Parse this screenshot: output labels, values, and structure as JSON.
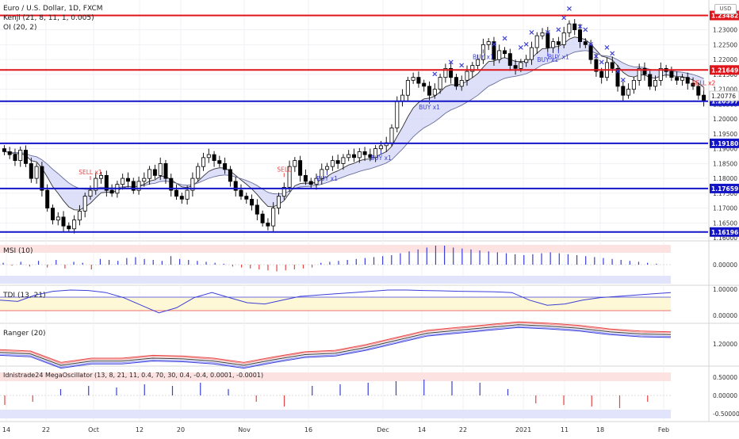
{
  "header": {
    "title": "Euro / U.S. Dollar, 1D, FXCM",
    "indicators": [
      "Kenji (21, 8, 11, 1, 0.005)",
      "OI (20, 2)"
    ],
    "currency_badge": "USD"
  },
  "colors": {
    "up_candle": "#ffffff",
    "down_candle": "#000000",
    "buy_marker": "#3b3fd8",
    "sell_marker": "#e64545",
    "resistance_line": "#e0151b",
    "support_line": "#1515c8",
    "cloud_fill": "#cfd3f5"
  },
  "chart_data": [
    {
      "type": "candlestick",
      "title": "Euro / U.S. Dollar, 1D, FXCM",
      "ylim": [
        1.1595,
        1.2395
      ],
      "price_axis": [
        "1.23000",
        "1.22500",
        "1.22000",
        "1.21500",
        "1.21000",
        "1.20500",
        "1.20000",
        "1.19500",
        "1.19000",
        "1.18500",
        "1.18000",
        "1.17500",
        "1.17000",
        "1.16500",
        "1.16000"
      ],
      "x_tick_labels": [
        "14",
        "22",
        "Oct",
        "12",
        "20",
        "Nov",
        "16",
        "Dec",
        "14",
        "22",
        "2021",
        "11",
        "18",
        "Feb"
      ],
      "horizontal_levels": [
        {
          "label": "1.23482",
          "value": 1.23482,
          "kind": "resistance"
        },
        {
          "label": "1.21649",
          "value": 1.21649,
          "kind": "resistance"
        },
        {
          "label": "1.20597",
          "value": 1.20597,
          "kind": "support"
        },
        {
          "label": "1.19180",
          "value": 1.1918,
          "kind": "support"
        },
        {
          "label": "1.17659",
          "value": 1.17659,
          "kind": "support"
        },
        {
          "label": "1.16196",
          "value": 1.16196,
          "kind": "support"
        }
      ],
      "last_price_label": "1.20776",
      "signals": [
        {
          "label": "SELL x1",
          "index": 16,
          "kind": "sell"
        },
        {
          "label": "SELL",
          "index": 52,
          "kind": "sell"
        },
        {
          "label": "BUY x1",
          "index": 60,
          "kind": "buy"
        },
        {
          "label": "BUY x1",
          "index": 70,
          "kind": "buy"
        },
        {
          "label": "BUY x1",
          "index": 79,
          "kind": "buy"
        },
        {
          "label": "BUY x1",
          "index": 89,
          "kind": "buy"
        },
        {
          "label": "BUY x1",
          "index": 101,
          "kind": "buy"
        },
        {
          "label": "BUY x1",
          "index": 103,
          "kind": "buy"
        },
        {
          "label": "SELL x2",
          "index": 131,
          "kind": "sell"
        },
        {
          "label": "SELL x2",
          "index": 136,
          "kind": "sell"
        }
      ],
      "x_marker_indices": [
        80,
        83,
        85,
        91,
        93,
        96,
        97,
        98,
        101,
        103,
        104,
        105,
        107,
        108,
        109,
        110,
        111,
        112,
        113,
        114,
        115
      ],
      "close": [
        1.189,
        1.188,
        1.186,
        1.1895,
        1.185,
        1.18,
        1.184,
        1.176,
        1.17,
        1.166,
        1.167,
        1.164,
        1.163,
        1.166,
        1.169,
        1.174,
        1.176,
        1.18,
        1.181,
        1.176,
        1.175,
        1.178,
        1.18,
        1.179,
        1.176,
        1.179,
        1.18,
        1.183,
        1.181,
        1.185,
        1.18,
        1.176,
        1.174,
        1.173,
        1.176,
        1.18,
        1.184,
        1.187,
        1.188,
        1.186,
        1.185,
        1.183,
        1.179,
        1.176,
        1.174,
        1.173,
        1.171,
        1.168,
        1.165,
        1.164,
        1.17,
        1.174,
        1.177,
        1.184,
        1.186,
        1.181,
        1.179,
        1.178,
        1.18,
        1.183,
        1.184,
        1.186,
        1.185,
        1.187,
        1.188,
        1.187,
        1.189,
        1.188,
        1.187,
        1.19,
        1.191,
        1.192,
        1.197,
        1.206,
        1.208,
        1.213,
        1.214,
        1.212,
        1.211,
        1.208,
        1.21,
        1.214,
        1.217,
        1.214,
        1.211,
        1.213,
        1.216,
        1.218,
        1.22,
        1.225,
        1.226,
        1.22,
        1.223,
        1.222,
        1.218,
        1.217,
        1.219,
        1.22,
        1.224,
        1.228,
        1.229,
        1.224,
        1.226,
        1.225,
        1.229,
        1.232,
        1.23,
        1.226,
        1.225,
        1.22,
        1.216,
        1.214,
        1.219,
        1.217,
        1.211,
        1.208,
        1.21,
        1.213,
        1.217,
        1.215,
        1.211,
        1.213,
        1.217,
        1.216,
        1.214,
        1.213,
        1.214,
        1.212,
        1.211,
        1.208,
        1.206
      ],
      "series": [
        {
          "name": "MSI (10)",
          "values": [
            0.02,
            -0.01,
            0.03,
            -0.02,
            0.04,
            -0.03,
            0.05,
            -0.04,
            0.03,
            0.02,
            -0.05,
            0.06,
            0.05,
            0.04,
            0.07,
            0.08,
            0.06,
            0.05,
            0.04,
            0.09,
            0.06,
            0.05,
            0.04,
            0.03,
            0.02,
            0.01,
            -0.02,
            -0.03,
            -0.04,
            -0.05,
            -0.06,
            -0.07,
            -0.06,
            -0.05,
            -0.04,
            -0.03,
            0.02,
            0.03,
            0.04,
            0.05,
            0.06,
            0.07,
            0.08,
            0.09,
            0.1,
            0.12,
            0.14,
            0.16,
            0.18,
            0.2,
            0.2,
            0.18,
            0.17,
            0.16,
            0.15,
            0.14,
            0.13,
            0.12,
            0.11,
            0.1,
            0.11,
            0.12,
            0.13,
            0.12,
            0.11,
            0.1,
            0.09,
            0.08,
            0.07,
            0.06,
            0.05,
            0.04,
            0.03,
            0.02,
            0.01,
            0.0
          ]
        },
        {
          "name": "TDI (13, 21)",
          "values": [
            0.6,
            0.55,
            0.8,
            0.95,
            1.0,
            0.98,
            0.9,
            0.7,
            0.4,
            0.1,
            0.3,
            0.7,
            0.9,
            0.7,
            0.5,
            0.45,
            0.6,
            0.75,
            0.8,
            0.85,
            0.9,
            0.95,
            1.0,
            1.0,
            0.98,
            0.97,
            0.95,
            0.94,
            0.93,
            0.9,
            0.6,
            0.4,
            0.45,
            0.6,
            0.7,
            0.75,
            0.8,
            0.85,
            0.9
          ]
        },
        {
          "name": "Ranger (20)",
          "values": [
            1.188,
            1.186,
            1.17,
            1.176,
            1.176,
            1.18,
            1.179,
            1.176,
            1.17,
            1.178,
            1.185,
            1.187,
            1.195,
            1.205,
            1.215,
            1.219,
            1.223,
            1.227,
            1.225,
            1.222,
            1.217,
            1.214,
            1.213
          ]
        },
        {
          "name": "Idnistrade24 MegaOscillator (13, 8, 21, 11, 0.4, 70, 30, 0.4, -0.4, 0.0001, -0.0001)",
          "values": [
            -0.3,
            -0.2,
            0.2,
            0.3,
            0.25,
            0.35,
            0.3,
            0.4,
            0.2,
            -0.2,
            -0.35,
            0.3,
            0.35,
            0.4,
            0.45,
            0.5,
            0.45,
            0.4,
            0.2,
            -0.25,
            -0.3,
            -0.35,
            -0.4,
            -0.2
          ]
        }
      ]
    }
  ],
  "panels": {
    "msi": {
      "label": "MSI (10)",
      "scale": "0.00000"
    },
    "tdi": {
      "label": "TDI (13, 21)",
      "scale_top": "1.00000",
      "scale_bottom": "0.00000"
    },
    "ranger": {
      "label": "Ranger (20)",
      "scale": "1.20000"
    },
    "mega": {
      "label": "Idnistrade24 MegaOscillator (13, 8, 21, 11, 0.4, 70, 30, 0.4, -0.4, 0.0001, -0.0001)",
      "scale_top": "0.50000",
      "scale_mid": "0.00000",
      "scale_bottom": "-0.50000"
    }
  }
}
